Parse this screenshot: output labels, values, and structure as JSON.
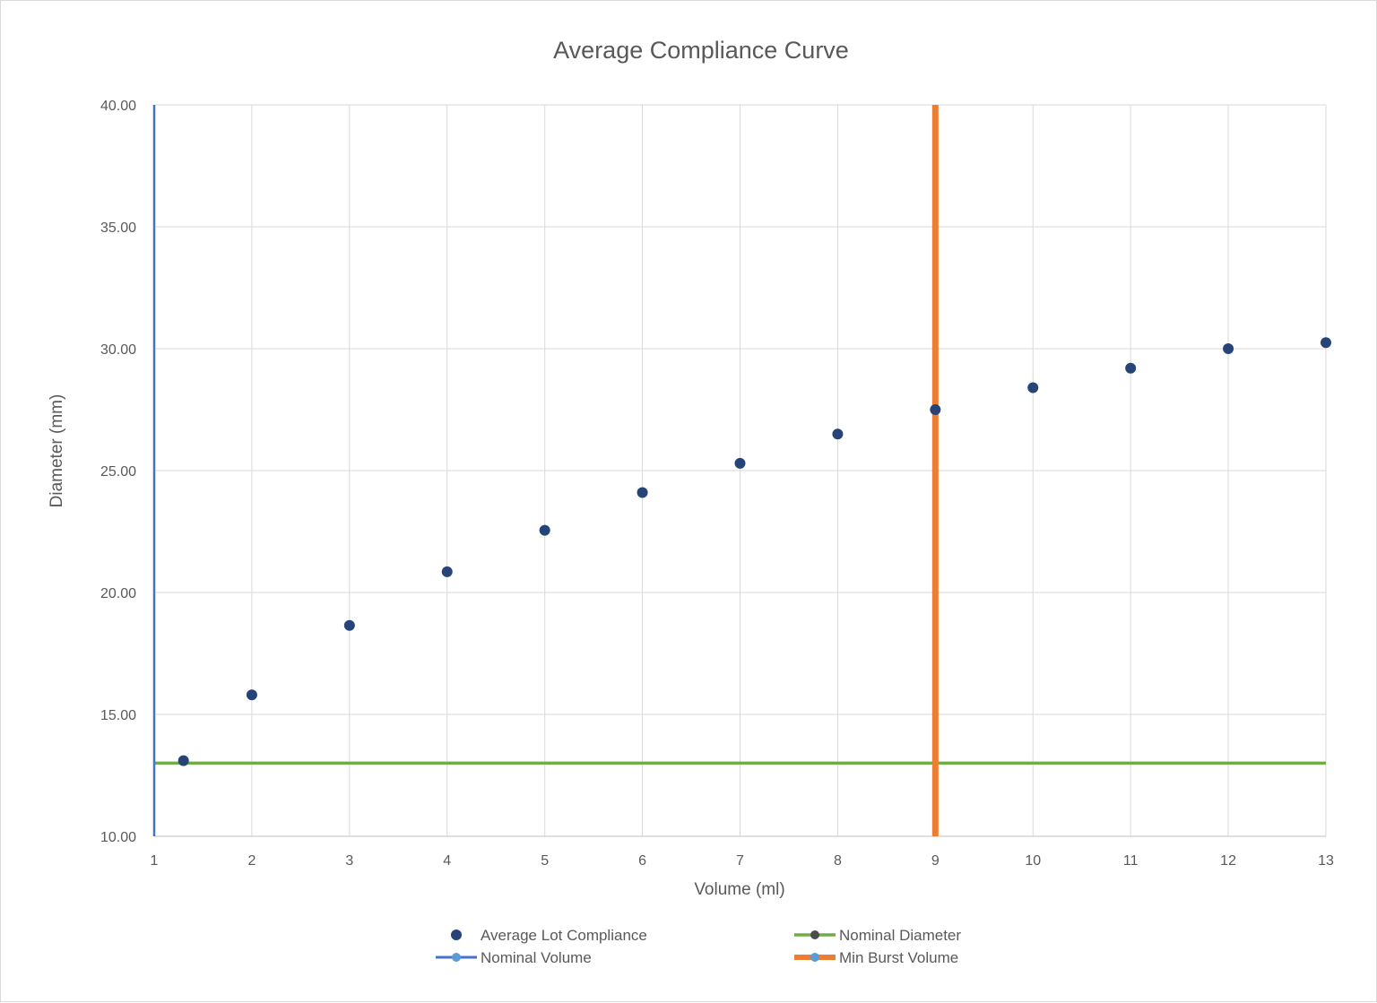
{
  "chart_data": {
    "type": "scatter",
    "title": "Average Compliance Curve",
    "xlabel": "Volume (ml)",
    "ylabel": "Diameter (mm)",
    "xlim": [
      1,
      13
    ],
    "ylim": [
      10,
      40
    ],
    "x_ticks": [
      "1",
      "2",
      "3",
      "4",
      "5",
      "6",
      "7",
      "8",
      "9",
      "10",
      "11",
      "12",
      "13"
    ],
    "y_ticks": [
      "10.00",
      "15.00",
      "20.00",
      "25.00",
      "30.00",
      "35.00",
      "40.00"
    ],
    "grid": true,
    "legend_position": "bottom",
    "series": [
      {
        "name": "Average Lot Compliance",
        "kind": "points",
        "color": "#264478",
        "points": [
          {
            "x": 1.3,
            "y": 13.1
          },
          {
            "x": 2,
            "y": 15.8
          },
          {
            "x": 3,
            "y": 18.65
          },
          {
            "x": 4,
            "y": 20.85
          },
          {
            "x": 5,
            "y": 22.55
          },
          {
            "x": 6,
            "y": 24.1
          },
          {
            "x": 7,
            "y": 25.3
          },
          {
            "x": 8,
            "y": 26.5
          },
          {
            "x": 9,
            "y": 27.5
          },
          {
            "x": 10,
            "y": 28.4
          },
          {
            "x": 11,
            "y": 29.2
          },
          {
            "x": 12,
            "y": 30.0
          },
          {
            "x": 13,
            "y": 30.25
          }
        ]
      },
      {
        "name": "Nominal Diameter",
        "kind": "hline",
        "color": "#70ad47",
        "y": 13
      },
      {
        "name": "Nominal Volume",
        "kind": "vline",
        "color": "#4472c4",
        "x": 1
      },
      {
        "name": "Min Burst Volume",
        "kind": "vline",
        "color": "#ed7d31",
        "x": 9
      }
    ]
  }
}
